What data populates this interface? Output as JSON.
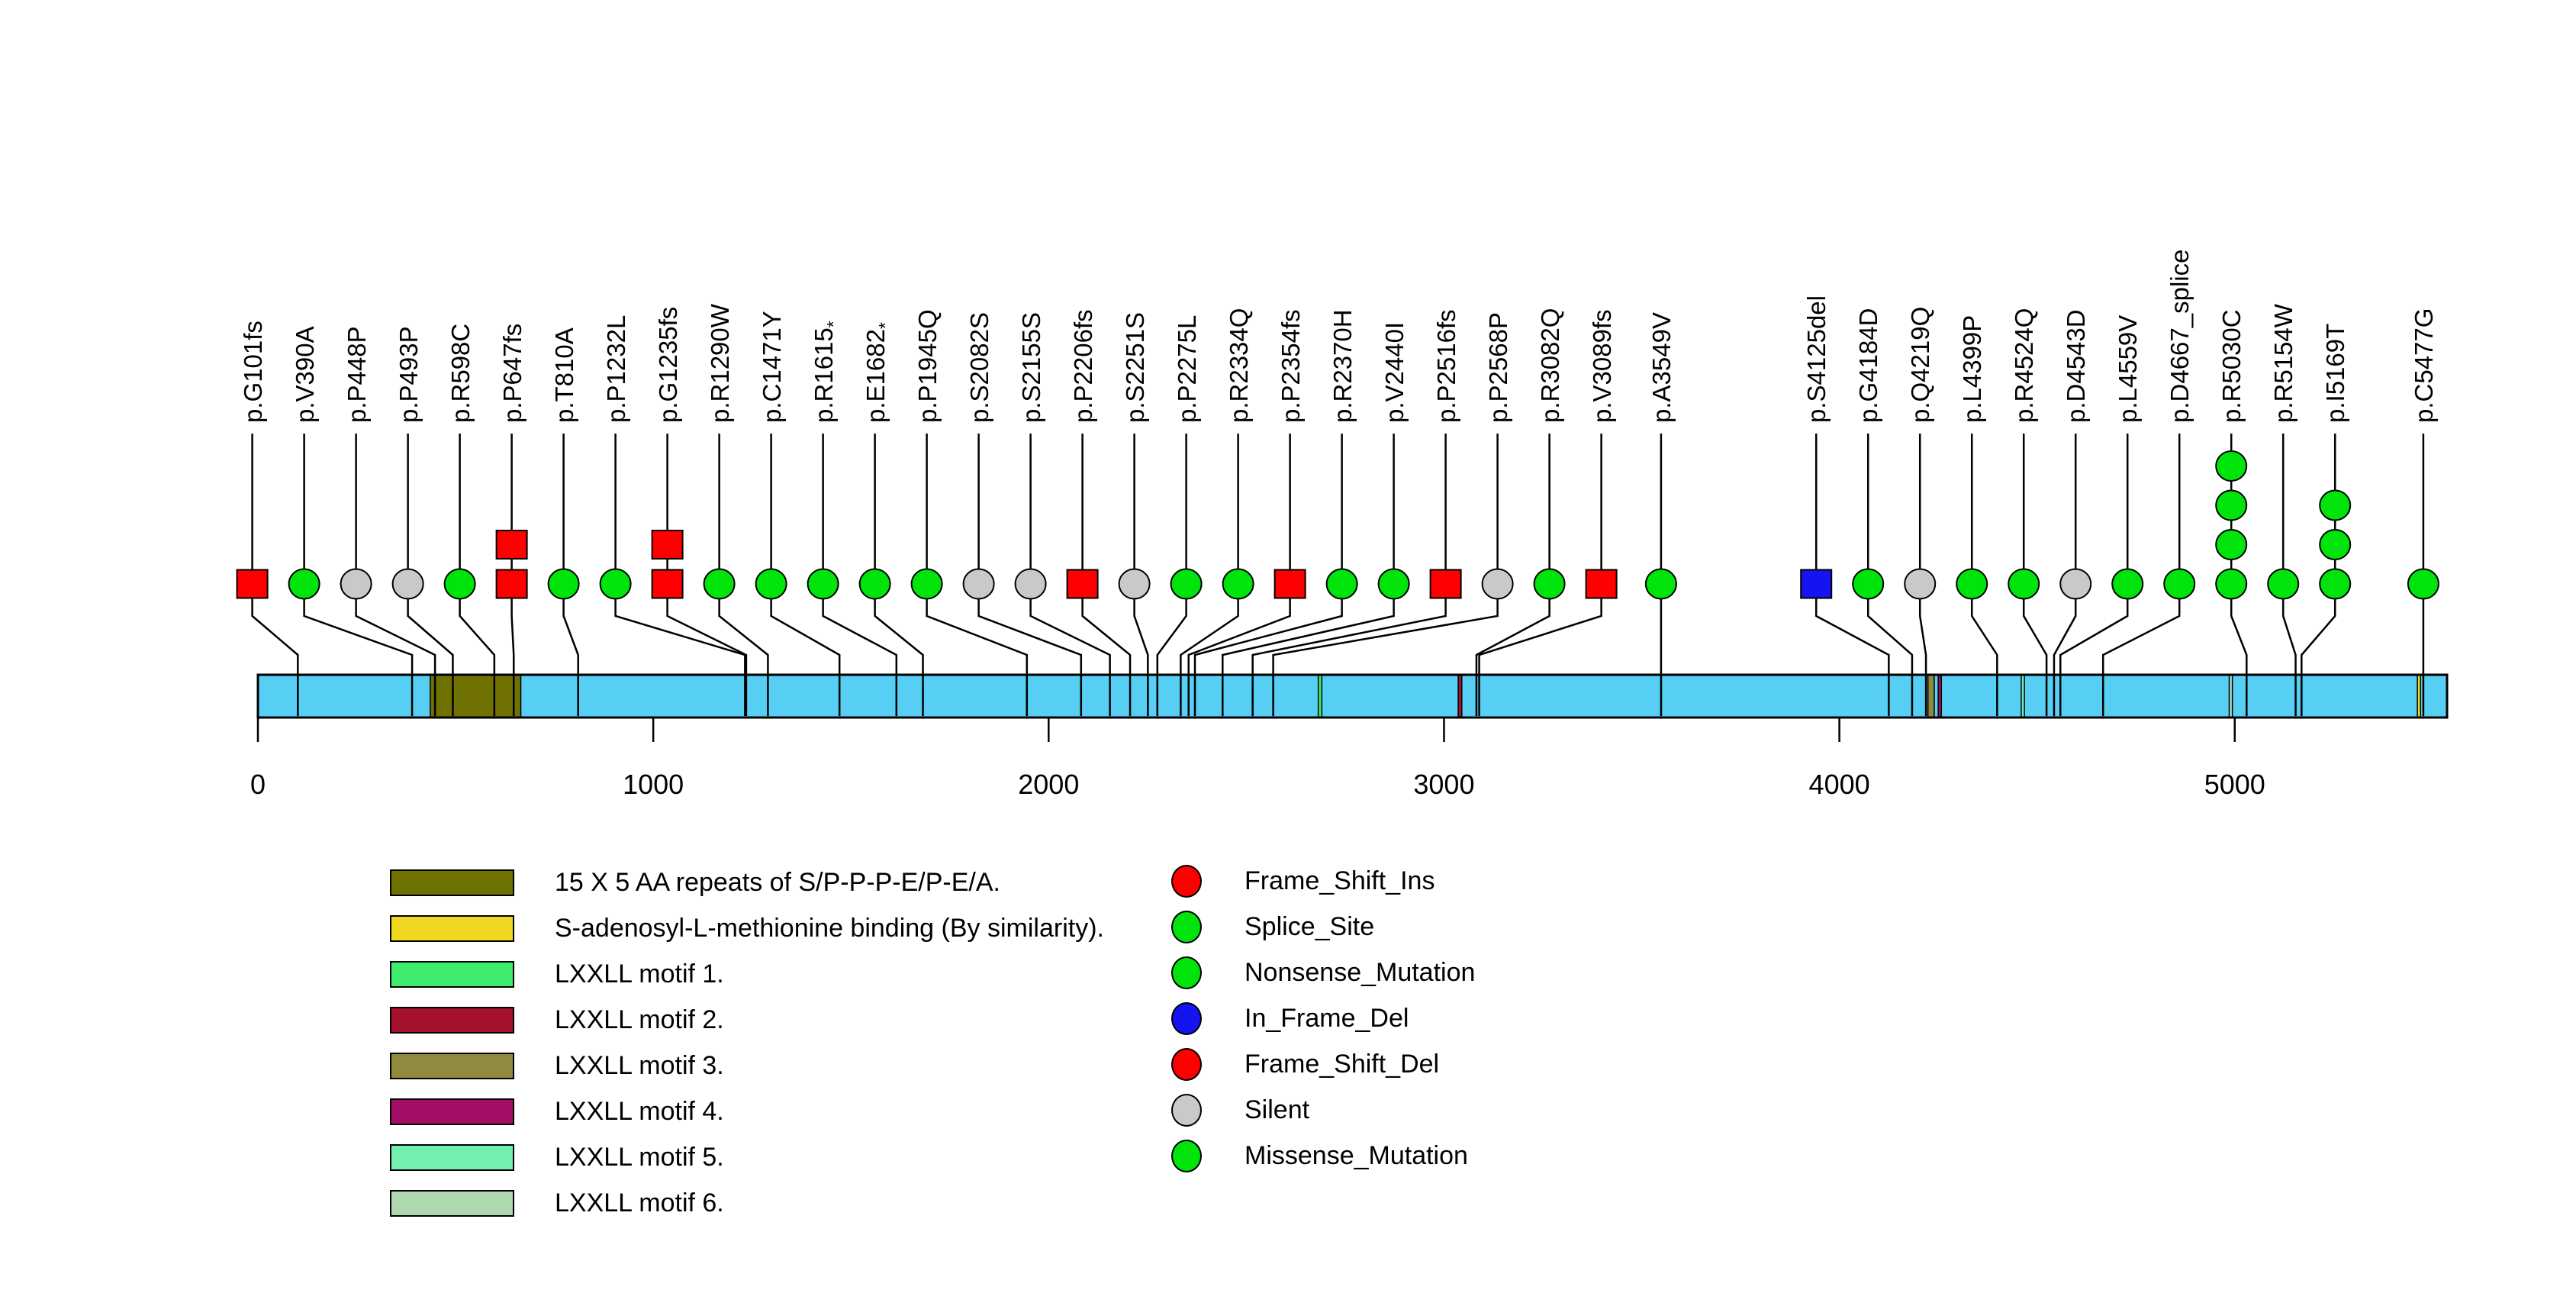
{
  "chart_data": {
    "type": "lollipop",
    "title": "",
    "protein": {
      "length": 5537,
      "bar_color": "#57CEF4"
    },
    "axis": {
      "ticks": [
        0,
        1000,
        2000,
        3000,
        4000,
        5000
      ]
    },
    "domains": [
      {
        "label": "15 X 5 AA repeats of S/P-P-P-E/P-E/A.",
        "color": "#6F7200",
        "start": 436,
        "end": 665
      },
      {
        "label": "S-adenosyl-L-methionine binding (By similarity).",
        "color": "#F0D722",
        "start": 5462,
        "end": 5470
      },
      {
        "label": "LXXLL motif 1.",
        "color": "#3FEC6C",
        "start": 2682,
        "end": 2691
      },
      {
        "label": "LXXLL motif 2.",
        "color": "#A5122D",
        "start": 3036,
        "end": 3045
      },
      {
        "label": "LXXLL motif 3.",
        "color": "#8F8A3D",
        "start": 4224,
        "end": 4240
      },
      {
        "label": "LXXLL motif 4.",
        "color": "#A30E67",
        "start": 4250,
        "end": 4258
      },
      {
        "label": "LXXLL motif 5.",
        "color": "#73F0B0",
        "start": 4460,
        "end": 4468
      },
      {
        "label": "LXXLL motif 6.",
        "color": "#AED9AE",
        "start": 4986,
        "end": 4994
      }
    ],
    "mutation_types": {
      "Frame_Shift_Ins": {
        "color": "#FF0000",
        "shape": "square"
      },
      "Splice_Site": {
        "color": "#00E40C",
        "shape": "circle"
      },
      "Nonsense_Mutation": {
        "color": "#00E40C",
        "shape": "circle"
      },
      "In_Frame_Del": {
        "color": "#1414F0",
        "shape": "square"
      },
      "Frame_Shift_Del": {
        "color": "#FF0000",
        "shape": "square"
      },
      "Silent": {
        "color": "#C9C9C9",
        "shape": "circle"
      },
      "Missense_Mutation": {
        "color": "#00E40C",
        "shape": "circle"
      }
    },
    "legend_mutation_types": [
      "Frame_Shift_Ins",
      "Splice_Site",
      "Nonsense_Mutation",
      "In_Frame_Del",
      "Frame_Shift_Del",
      "Silent",
      "Missense_Mutation"
    ],
    "mutations": [
      {
        "label": "p.G101fs",
        "position": 101,
        "type": "Frame_Shift_Del",
        "count": 1
      },
      {
        "label": "p.V390A",
        "position": 390,
        "type": "Missense_Mutation",
        "count": 1
      },
      {
        "label": "p.P448P",
        "position": 448,
        "type": "Silent",
        "count": 1
      },
      {
        "label": "p.P493P",
        "position": 493,
        "type": "Silent",
        "count": 1
      },
      {
        "label": "p.R598C",
        "position": 598,
        "type": "Missense_Mutation",
        "count": 1
      },
      {
        "label": "p.P647fs",
        "position": 647,
        "type": "Frame_Shift_Del",
        "count": 2
      },
      {
        "label": "p.T810A",
        "position": 810,
        "type": "Missense_Mutation",
        "count": 1
      },
      {
        "label": "p.P1232L",
        "position": 1232,
        "type": "Missense_Mutation",
        "count": 1
      },
      {
        "label": "p.G1235fs",
        "position": 1235,
        "type": "Frame_Shift_Del",
        "count": 2
      },
      {
        "label": "p.R1290W",
        "position": 1290,
        "type": "Missense_Mutation",
        "count": 1
      },
      {
        "label": "p.C1471Y",
        "position": 1471,
        "type": "Missense_Mutation",
        "count": 1
      },
      {
        "label": "p.R1615*",
        "position": 1615,
        "type": "Nonsense_Mutation",
        "count": 1
      },
      {
        "label": "p.E1682*",
        "position": 1682,
        "type": "Nonsense_Mutation",
        "count": 1
      },
      {
        "label": "p.P1945Q",
        "position": 1945,
        "type": "Missense_Mutation",
        "count": 1
      },
      {
        "label": "p.S2082S",
        "position": 2082,
        "type": "Silent",
        "count": 1
      },
      {
        "label": "p.S2155S",
        "position": 2155,
        "type": "Silent",
        "count": 1
      },
      {
        "label": "p.P2206fs",
        "position": 2206,
        "type": "Frame_Shift_Ins",
        "count": 1
      },
      {
        "label": "p.S2251S",
        "position": 2251,
        "type": "Silent",
        "count": 1
      },
      {
        "label": "p.P2275L",
        "position": 2275,
        "type": "Missense_Mutation",
        "count": 1
      },
      {
        "label": "p.R2334Q",
        "position": 2334,
        "type": "Missense_Mutation",
        "count": 1
      },
      {
        "label": "p.P2354fs",
        "position": 2354,
        "type": "Frame_Shift_Del",
        "count": 1
      },
      {
        "label": "p.R2370H",
        "position": 2370,
        "type": "Missense_Mutation",
        "count": 1
      },
      {
        "label": "p.V2440I",
        "position": 2440,
        "type": "Missense_Mutation",
        "count": 1
      },
      {
        "label": "p.P2516fs",
        "position": 2516,
        "type": "Frame_Shift_Ins",
        "count": 1
      },
      {
        "label": "p.P2568P",
        "position": 2568,
        "type": "Silent",
        "count": 1
      },
      {
        "label": "p.R3082Q",
        "position": 3082,
        "type": "Missense_Mutation",
        "count": 1
      },
      {
        "label": "p.V3089fs",
        "position": 3089,
        "type": "Frame_Shift_Del",
        "count": 1
      },
      {
        "label": "p.A3549V",
        "position": 3549,
        "type": "Missense_Mutation",
        "count": 1
      },
      {
        "label": "p.S4125del",
        "position": 4125,
        "type": "In_Frame_Del",
        "count": 1
      },
      {
        "label": "p.G4184D",
        "position": 4184,
        "type": "Missense_Mutation",
        "count": 1
      },
      {
        "label": "p.Q4219Q",
        "position": 4219,
        "type": "Silent",
        "count": 1
      },
      {
        "label": "p.L4399P",
        "position": 4399,
        "type": "Missense_Mutation",
        "count": 1
      },
      {
        "label": "p.R4524Q",
        "position": 4524,
        "type": "Missense_Mutation",
        "count": 1
      },
      {
        "label": "p.D4543D",
        "position": 4543,
        "type": "Silent",
        "count": 1
      },
      {
        "label": "p.L4559V",
        "position": 4559,
        "type": "Missense_Mutation",
        "count": 1
      },
      {
        "label": "p.D4667_splice",
        "position": 4667,
        "type": "Splice_Site",
        "count": 1
      },
      {
        "label": "p.R5030C",
        "position": 5030,
        "type": "Missense_Mutation",
        "count": 4
      },
      {
        "label": "p.R5154W",
        "position": 5154,
        "type": "Missense_Mutation",
        "count": 1
      },
      {
        "label": "p.I5169T",
        "position": 5169,
        "type": "Missense_Mutation",
        "count": 3
      },
      {
        "label": "p.C5477G",
        "position": 5477,
        "type": "Missense_Mutation",
        "count": 1
      }
    ]
  }
}
